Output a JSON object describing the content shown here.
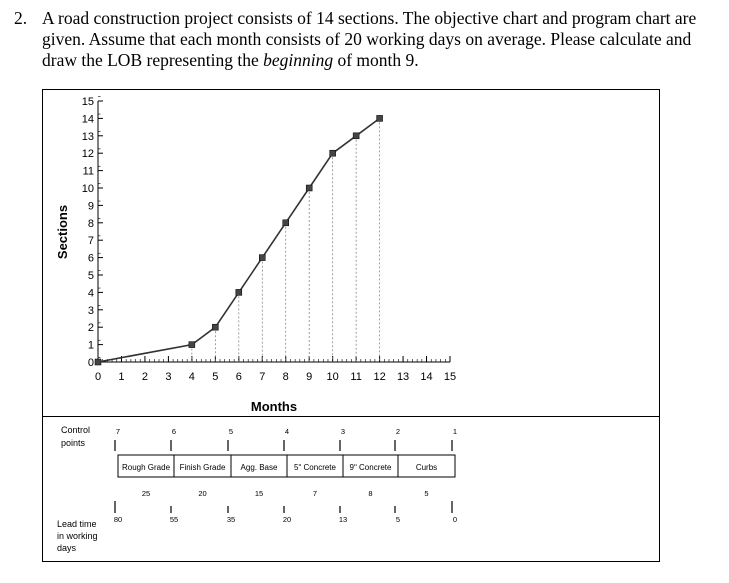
{
  "question": {
    "number": "2.",
    "text_before": "A road construction project consists of 14 sections. The objective chart and program chart are given. Assume that each month consists of 20 working days on average. Please calculate and draw the LOB representing the ",
    "text_emph": "beginning",
    "text_after": " of month 9."
  },
  "chart_data": {
    "type": "line",
    "title": "",
    "xlabel": "Months",
    "ylabel": "Sections",
    "xlim": [
      0,
      15
    ],
    "ylim": [
      0,
      15
    ],
    "x_ticks": [
      "0",
      "1",
      "2",
      "3",
      "4",
      "5",
      "6",
      "7",
      "8",
      "9",
      "10",
      "11",
      "12",
      "13",
      "14",
      "15"
    ],
    "y_ticks": [
      "0",
      "1",
      "2",
      "3",
      "4",
      "5",
      "6",
      "7",
      "8",
      "9",
      "10",
      "11",
      "12",
      "13",
      "14",
      "15"
    ],
    "grid": "vertical dashed lines at each data point",
    "series": [
      {
        "x": [
          0,
          4,
          5,
          6,
          7,
          8,
          9,
          10,
          11,
          12
        ],
        "y": [
          0,
          1,
          2,
          4,
          6,
          8,
          10,
          12,
          13,
          14
        ]
      }
    ]
  },
  "program_chart": {
    "control_points_label": "Control points",
    "lead_time_label": "Lead time in working days",
    "control_points": [
      "7",
      "6",
      "5",
      "4",
      "3",
      "2",
      "1"
    ],
    "lead_times": [
      "80",
      "55",
      "35",
      "20",
      "13",
      "5",
      "0"
    ],
    "activities": [
      "Rough Grade",
      "Finish Grade",
      "Agg. Base",
      "5ʺ Concrete",
      "9ʺ Concrete",
      "Curbs"
    ],
    "durations": [
      "25",
      "20",
      "15",
      "7",
      "8",
      "5"
    ]
  }
}
